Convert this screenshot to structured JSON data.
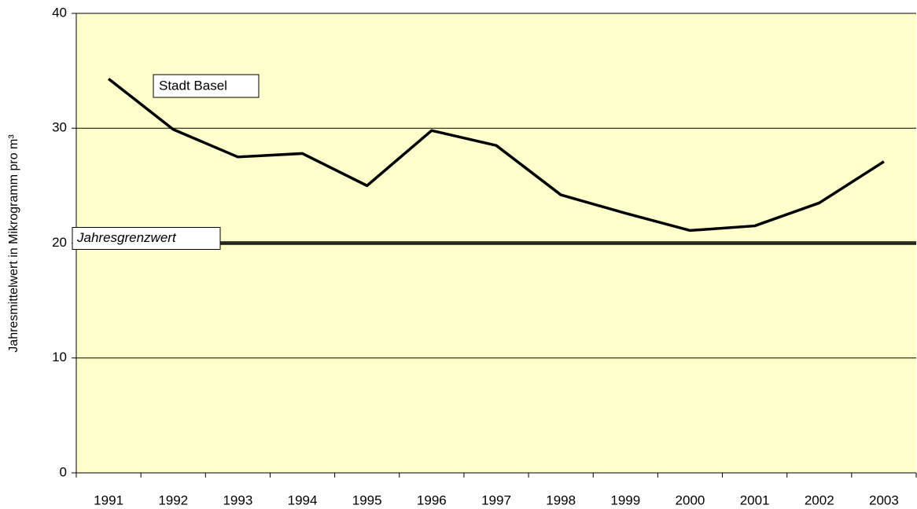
{
  "chart_data": {
    "type": "line",
    "y_label": "Jahresmittelwert in Mikrogramm pro m³",
    "categories": [
      "1991",
      "1992",
      "1993",
      "1994",
      "1995",
      "1996",
      "1997",
      "1998",
      "1999",
      "2000",
      "2001",
      "2002",
      "2003"
    ],
    "series": [
      {
        "name": "Stadt Basel",
        "color": "#000000",
        "values": [
          34.3,
          29.9,
          27.5,
          27.8,
          25.0,
          29.8,
          28.5,
          24.2,
          22.6,
          21.1,
          21.5,
          23.5,
          27.1
        ]
      }
    ],
    "reference_line": {
      "label": "Jahresgrenzwert",
      "value": 20,
      "color": "#000000"
    },
    "ylim": [
      0,
      40
    ],
    "yticks": [
      0,
      10,
      20,
      30,
      40
    ],
    "grid": true,
    "plot_background": "#ffffcc"
  }
}
